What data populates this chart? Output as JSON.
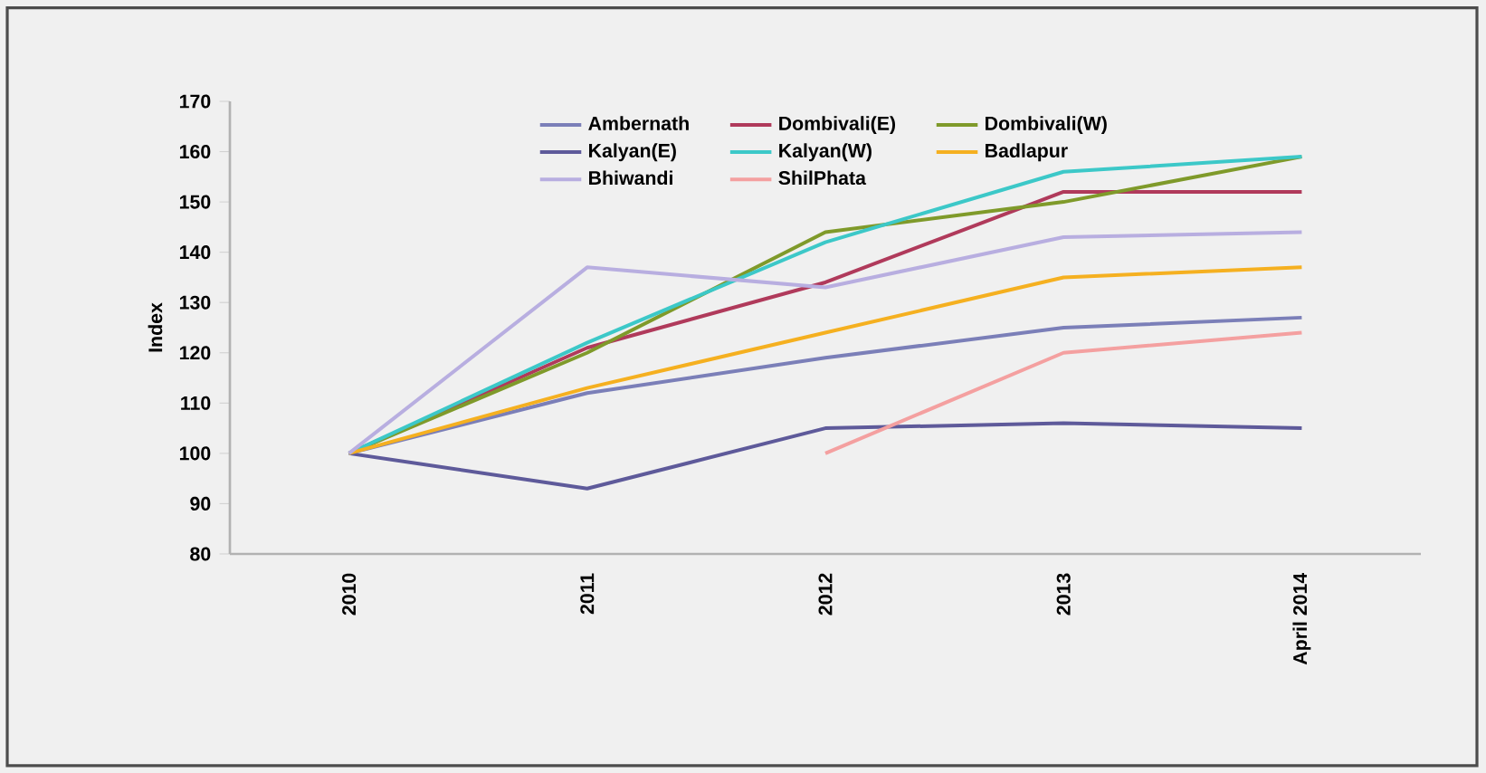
{
  "chart_data": {
    "type": "line",
    "ylabel": "Index",
    "categories": [
      "2010",
      "2011",
      "2012",
      "2013",
      "April 2014"
    ],
    "series": [
      {
        "name": "Ambernath",
        "color": "#7b7fb8",
        "values": [
          100,
          112,
          119,
          125,
          127
        ]
      },
      {
        "name": "Dombivali(E)",
        "color": "#b03a5b",
        "values": [
          100,
          121,
          134,
          152,
          152
        ]
      },
      {
        "name": "Dombivali(W)",
        "color": "#7f9a2a",
        "values": [
          100,
          120,
          144,
          150,
          159
        ]
      },
      {
        "name": "Kalyan(E)",
        "color": "#5e5a9a",
        "values": [
          100,
          93,
          105,
          106,
          105
        ]
      },
      {
        "name": "Kalyan(W)",
        "color": "#3cc8c8",
        "values": [
          100,
          122,
          142,
          156,
          159
        ]
      },
      {
        "name": "Badlapur",
        "color": "#f5b020",
        "values": [
          100,
          113,
          124,
          135,
          137
        ]
      },
      {
        "name": "Bhiwandi",
        "color": "#b8aee0",
        "values": [
          100,
          137,
          133,
          143,
          144
        ]
      },
      {
        "name": "ShilPhata",
        "color": "#f4a0a0",
        "values": [
          null,
          null,
          100,
          120,
          124
        ]
      }
    ],
    "ylim": [
      80,
      170
    ],
    "yticks": [
      80,
      90,
      100,
      110,
      120,
      130,
      140,
      150,
      160,
      170
    ],
    "legend": "top",
    "grid": false
  }
}
